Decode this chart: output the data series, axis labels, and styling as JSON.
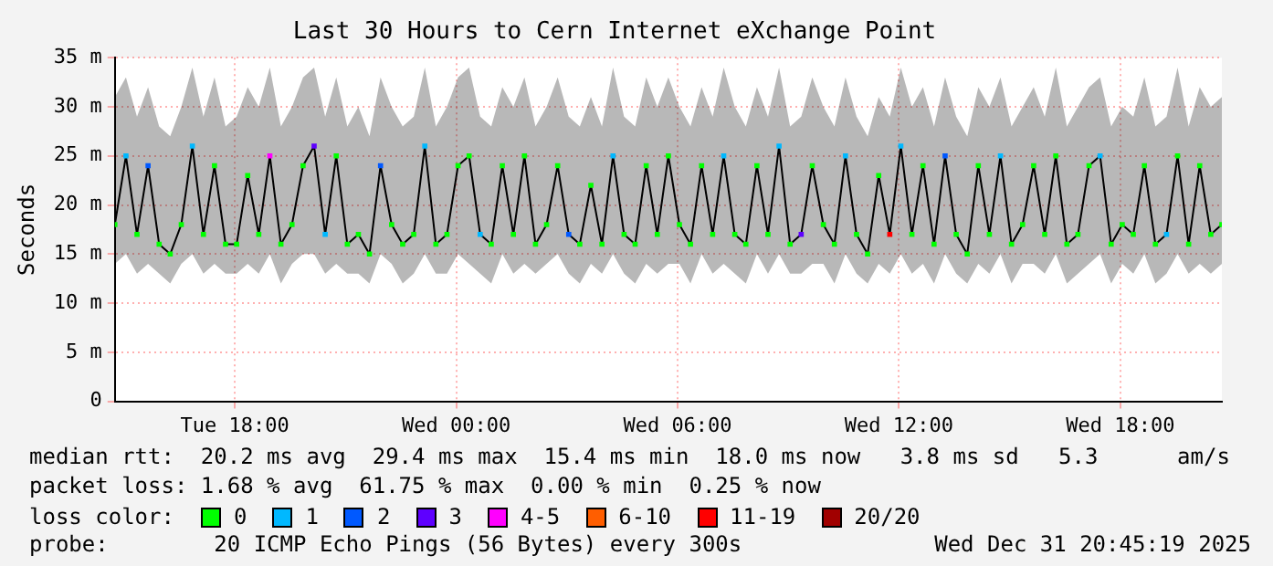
{
  "chart_data": {
    "type": "line",
    "title": "Last 30 Hours to Cern Internet eXchange Point",
    "ylabel": "Seconds",
    "legend_title": "loss color:",
    "legend": "bottom",
    "grid": true,
    "xlim": [
      "2025-12-30T14:45",
      "2025-12-31T20:45"
    ],
    "xticks": [
      {
        "value": "2025-12-30T18:00",
        "label": "Tue 18:00"
      },
      {
        "value": "2025-12-31T00:00",
        "label": "Wed 00:00"
      },
      {
        "value": "2025-12-31T06:00",
        "label": "Wed 06:00"
      },
      {
        "value": "2025-12-31T12:00",
        "label": "Wed 12:00"
      },
      {
        "value": "2025-12-31T18:00",
        "label": "Wed 18:00"
      }
    ],
    "ylim": [
      0,
      35
    ],
    "yticks": [
      0,
      {
        "value": 5,
        "label": "5 m"
      },
      {
        "value": 10,
        "label": "10 m"
      },
      {
        "value": 15,
        "label": "15 m"
      },
      {
        "value": 20,
        "label": "20 m"
      },
      {
        "value": 25,
        "label": "25 m"
      },
      {
        "value": 30,
        "label": "30 m"
      },
      {
        "value": 35,
        "label": "35 m"
      }
    ],
    "x": [
      "2025-12-30T14:45",
      "2025-12-30T15:03",
      "2025-12-30T15:21",
      "2025-12-30T15:39",
      "2025-12-30T15:57",
      "2025-12-30T16:15",
      "2025-12-30T16:33",
      "2025-12-30T16:51",
      "2025-12-30T17:09",
      "2025-12-30T17:27",
      "2025-12-30T17:45",
      "2025-12-30T18:03",
      "2025-12-30T18:21",
      "2025-12-30T18:39",
      "2025-12-30T18:57",
      "2025-12-30T19:15",
      "2025-12-30T19:33",
      "2025-12-30T19:51",
      "2025-12-30T20:09",
      "2025-12-30T20:27",
      "2025-12-30T20:45",
      "2025-12-30T21:03",
      "2025-12-30T21:21",
      "2025-12-30T21:39",
      "2025-12-30T21:57",
      "2025-12-30T22:15",
      "2025-12-30T22:33",
      "2025-12-30T22:51",
      "2025-12-30T23:09",
      "2025-12-30T23:27",
      "2025-12-30T23:45",
      "2025-12-31T00:03",
      "2025-12-31T00:21",
      "2025-12-31T00:39",
      "2025-12-31T00:57",
      "2025-12-31T01:15",
      "2025-12-31T01:33",
      "2025-12-31T01:51",
      "2025-12-31T02:09",
      "2025-12-31T02:27",
      "2025-12-31T02:45",
      "2025-12-31T03:03",
      "2025-12-31T03:21",
      "2025-12-31T03:39",
      "2025-12-31T03:57",
      "2025-12-31T04:15",
      "2025-12-31T04:33",
      "2025-12-31T04:51",
      "2025-12-31T05:09",
      "2025-12-31T05:27",
      "2025-12-31T05:45",
      "2025-12-31T06:03",
      "2025-12-31T06:21",
      "2025-12-31T06:39",
      "2025-12-31T06:57",
      "2025-12-31T07:15",
      "2025-12-31T07:33",
      "2025-12-31T07:51",
      "2025-12-31T08:09",
      "2025-12-31T08:27",
      "2025-12-31T08:45",
      "2025-12-31T09:03",
      "2025-12-31T09:21",
      "2025-12-31T09:39",
      "2025-12-31T09:57",
      "2025-12-31T10:15",
      "2025-12-31T10:33",
      "2025-12-31T10:51",
      "2025-12-31T11:09",
      "2025-12-31T11:27",
      "2025-12-31T11:45",
      "2025-12-31T12:03",
      "2025-12-31T12:21",
      "2025-12-31T12:39",
      "2025-12-31T12:57",
      "2025-12-31T13:15",
      "2025-12-31T13:33",
      "2025-12-31T13:51",
      "2025-12-31T14:09",
      "2025-12-31T14:27",
      "2025-12-31T14:45",
      "2025-12-31T15:03",
      "2025-12-31T15:21",
      "2025-12-31T15:39",
      "2025-12-31T15:57",
      "2025-12-31T16:15",
      "2025-12-31T16:33",
      "2025-12-31T16:51",
      "2025-12-31T17:09",
      "2025-12-31T17:27",
      "2025-12-31T17:45",
      "2025-12-31T18:03",
      "2025-12-31T18:21",
      "2025-12-31T18:39",
      "2025-12-31T18:57",
      "2025-12-31T19:15",
      "2025-12-31T19:33",
      "2025-12-31T19:51",
      "2025-12-31T20:09",
      "2025-12-31T20:27",
      "2025-12-31T20:45"
    ],
    "series": [
      {
        "color": "#000000",
        "marker": "none",
        "values": [
          18,
          25,
          17,
          24,
          16,
          15,
          18,
          26,
          17,
          24,
          16,
          16,
          23,
          17,
          25,
          16,
          18,
          24,
          26,
          17,
          25,
          16,
          17,
          15,
          24,
          18,
          16,
          17,
          26,
          16,
          17,
          24,
          25,
          17,
          16,
          24,
          17,
          25,
          16,
          18,
          24,
          17,
          16,
          22,
          16,
          25,
          17,
          16,
          24,
          17,
          25,
          18,
          16,
          24,
          17,
          25,
          17,
          16,
          24,
          17,
          26,
          16,
          17,
          24,
          18,
          16,
          25,
          17,
          15,
          23,
          17,
          26,
          17,
          24,
          16,
          25,
          17,
          15,
          24,
          17,
          25,
          16,
          18,
          24,
          17,
          25,
          16,
          17,
          24,
          25,
          16,
          18,
          17,
          24,
          16,
          17,
          25,
          16,
          24,
          17,
          18
        ],
        "lower": [
          14,
          15,
          13,
          14,
          13,
          12,
          14,
          15,
          13,
          14,
          13,
          13,
          14,
          13,
          15,
          12,
          14,
          15,
          15,
          13,
          14,
          13,
          13,
          12,
          15,
          14,
          12,
          13,
          15,
          13,
          13,
          15,
          14,
          13,
          12,
          15,
          13,
          14,
          13,
          14,
          15,
          13,
          12,
          14,
          13,
          15,
          13,
          12,
          14,
          13,
          14,
          14,
          12,
          15,
          13,
          14,
          13,
          12,
          15,
          13,
          15,
          13,
          13,
          14,
          14,
          12,
          15,
          13,
          12,
          14,
          13,
          15,
          13,
          14,
          12,
          15,
          13,
          12,
          14,
          13,
          15,
          12,
          14,
          14,
          13,
          15,
          12,
          13,
          14,
          15,
          12,
          14,
          13,
          15,
          12,
          13,
          15,
          13,
          14,
          13,
          14
        ],
        "upper": [
          31,
          33,
          29,
          32,
          28,
          27,
          30,
          34,
          29,
          33,
          28,
          29,
          32,
          30,
          34,
          28,
          30,
          33,
          34,
          29,
          33,
          28,
          30,
          27,
          33,
          30,
          28,
          29,
          34,
          28,
          30,
          33,
          34,
          29,
          28,
          32,
          30,
          33,
          28,
          30,
          33,
          29,
          28,
          31,
          28,
          34,
          29,
          28,
          33,
          30,
          33,
          30,
          28,
          32,
          29,
          34,
          30,
          28,
          32,
          29,
          34,
          28,
          29,
          33,
          30,
          28,
          33,
          29,
          27,
          31,
          29,
          34,
          30,
          32,
          28,
          33,
          29,
          27,
          32,
          30,
          33,
          28,
          30,
          32,
          29,
          34,
          28,
          30,
          32,
          33,
          28,
          30,
          29,
          33,
          28,
          29,
          34,
          28,
          32,
          30,
          31
        ]
      },
      {
        "type": "scatter",
        "name": "0",
        "color": "#00ff00",
        "marker": "square",
        "values": [
          18,
          null,
          17,
          null,
          16,
          15,
          18,
          null,
          17,
          24,
          16,
          16,
          23,
          17,
          null,
          16,
          18,
          24,
          null,
          null,
          25,
          16,
          17,
          15,
          null,
          18,
          16,
          17,
          null,
          16,
          17,
          24,
          25,
          null,
          16,
          24,
          17,
          25,
          16,
          18,
          24,
          null,
          16,
          22,
          16,
          null,
          17,
          16,
          24,
          17,
          25,
          18,
          16,
          24,
          17,
          null,
          17,
          16,
          24,
          17,
          null,
          16,
          null,
          24,
          18,
          16,
          null,
          17,
          15,
          23,
          null,
          null,
          17,
          24,
          16,
          null,
          17,
          15,
          24,
          17,
          null,
          16,
          18,
          24,
          17,
          25,
          16,
          17,
          24,
          null,
          16,
          18,
          17,
          24,
          16,
          null,
          25,
          16,
          24,
          17,
          18
        ]
      },
      {
        "type": "scatter",
        "name": "1",
        "color": "#00b8ff",
        "marker": "square",
        "x": [
          "2025-12-30T15:03",
          "2025-12-30T16:51",
          "2025-12-30T20:27",
          "2025-12-30T23:09",
          "2025-12-31T00:39",
          "2025-12-31T04:15",
          "2025-12-31T07:15",
          "2025-12-31T08:45",
          "2025-12-31T10:33",
          "2025-12-31T12:03",
          "2025-12-31T14:45",
          "2025-12-31T17:27",
          "2025-12-31T19:15"
        ],
        "values": [
          25,
          26,
          17,
          26,
          17,
          25,
          25,
          26,
          25,
          26,
          25,
          25,
          17
        ]
      },
      {
        "type": "scatter",
        "name": "2",
        "color": "#0059ff",
        "marker": "square",
        "x": [
          "2025-12-30T15:39",
          "2025-12-30T21:57",
          "2025-12-31T03:03",
          "2025-12-31T13:15"
        ],
        "values": [
          24,
          24,
          17,
          25
        ]
      },
      {
        "type": "scatter",
        "name": "3",
        "color": "#5e00ff",
        "marker": "square",
        "x": [
          "2025-12-30T20:09",
          "2025-12-31T09:21"
        ],
        "values": [
          26,
          17
        ]
      },
      {
        "type": "scatter",
        "name": "4-5",
        "color": "#ff00fe",
        "marker": "square",
        "x": [
          "2025-12-30T18:57"
        ],
        "values": [
          25
        ]
      },
      {
        "type": "scatter",
        "name": "6-10",
        "color": "#ff5e00",
        "marker": "square",
        "values": [
          null,
          null,
          null,
          null,
          null,
          null,
          null,
          null,
          null,
          null,
          null,
          null,
          null,
          null,
          null,
          null,
          null,
          null,
          null,
          null,
          null,
          null,
          null,
          null,
          null,
          null,
          null,
          null,
          null,
          null,
          null,
          null,
          null,
          null,
          null,
          null,
          null,
          null,
          null,
          null,
          null,
          null,
          null,
          null,
          null,
          null,
          null,
          null,
          null,
          null,
          null,
          null,
          null,
          null,
          null,
          null,
          null,
          null,
          null,
          null,
          null,
          null,
          null,
          null,
          null,
          null,
          null,
          null,
          null,
          null,
          null,
          null,
          null,
          null,
          null,
          null,
          null,
          null,
          null,
          null,
          null,
          null,
          null,
          null,
          null,
          null,
          null,
          null,
          null,
          null,
          null,
          null,
          null,
          null,
          null,
          null,
          null,
          null,
          null,
          null,
          null
        ]
      },
      {
        "type": "scatter",
        "name": "11-19",
        "color": "#ff0000",
        "marker": "square",
        "x": [
          "2025-12-31T11:45"
        ],
        "values": [
          17
        ]
      },
      {
        "type": "scatter",
        "name": "20/20",
        "color": "#a10000",
        "marker": "square",
        "values": [
          null,
          null,
          null,
          null,
          null,
          null,
          null,
          null,
          null,
          null,
          null,
          null,
          null,
          null,
          null,
          null,
          null,
          null,
          null,
          null,
          null,
          null,
          null,
          null,
          null,
          null,
          null,
          null,
          null,
          null,
          null,
          null,
          null,
          null,
          null,
          null,
          null,
          null,
          null,
          null,
          null,
          null,
          null,
          null,
          null,
          null,
          null,
          null,
          null,
          null,
          null,
          null,
          null,
          null,
          null,
          null,
          null,
          null,
          null,
          null,
          null,
          null,
          null,
          null,
          null,
          null,
          null,
          null,
          null,
          null,
          null,
          null,
          null,
          null,
          null,
          null,
          null,
          null,
          null,
          null,
          null,
          null,
          null,
          null,
          null,
          null,
          null,
          null,
          null,
          null,
          null,
          null,
          null,
          null,
          null,
          null,
          null,
          null,
          null,
          null,
          null
        ]
      }
    ],
    "annotations": [
      "median rtt:  20.2 ms avg  29.4 ms max  15.4 ms min  18.0 ms now   3.8 ms sd   5.3      am/s",
      "packet loss: 1.68 % avg  61.75 % max  0.00 % min  0.25 % now",
      "probe:        20 ICMP Echo Pings (56 Bytes) every 300s",
      "Wed Dec 31 20:45:19 2025"
    ]
  }
}
